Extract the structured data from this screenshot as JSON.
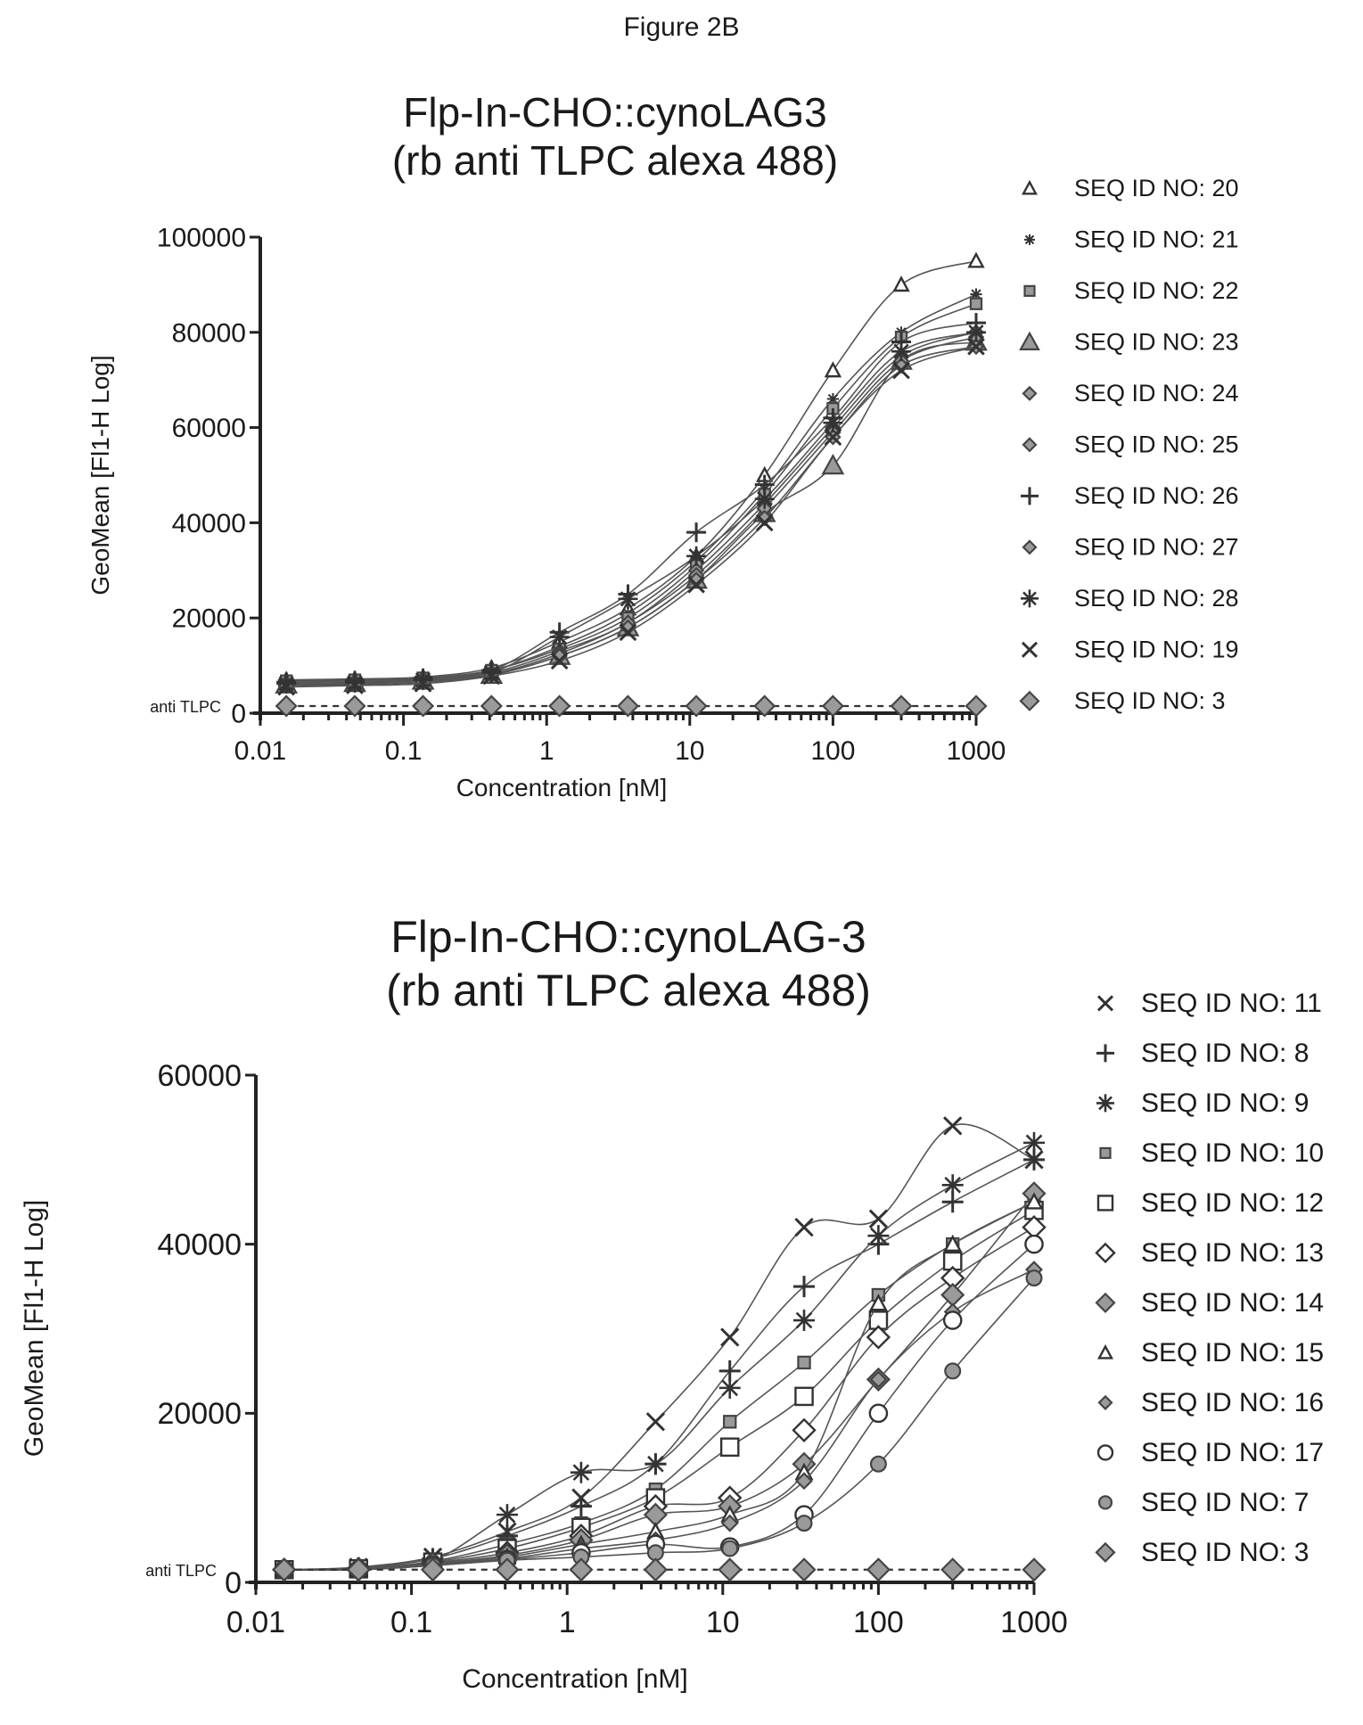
{
  "figure_title": "Figure 2B",
  "chart_data": [
    {
      "type": "scatter",
      "title": "Flp-In-CHO::cynoLAG3",
      "subtitle": "(rb anti TLPC alexa 488)",
      "xlabel": "Concentration [nM]",
      "ylabel": "GeoMean [Fl1-H Log]",
      "xscale": "log",
      "xlim": [
        0.01,
        1000
      ],
      "ylim": [
        0,
        100000
      ],
      "xticks": [
        "0.01",
        "0.1",
        "1",
        "10",
        "100",
        "1000"
      ],
      "yticks": [
        "0",
        "20000",
        "40000",
        "60000",
        "80000",
        "100000"
      ],
      "ref_label": "anti TLPC",
      "legend_position": "right",
      "x": [
        0.0152,
        0.0457,
        0.137,
        0.412,
        1.23,
        3.7,
        11.1,
        33.3,
        100,
        300,
        1000
      ],
      "series": [
        {
          "name": "SEQ ID NO: 20",
          "marker": "triangle-small",
          "values": [
            7000,
            7200,
            7600,
            9500,
            15000,
            22000,
            33000,
            50000,
            72000,
            90000,
            95000
          ]
        },
        {
          "name": "SEQ ID NO: 21",
          "marker": "star-small",
          "values": [
            6500,
            6800,
            7200,
            9000,
            14000,
            21000,
            32000,
            47000,
            66000,
            80000,
            88000
          ]
        },
        {
          "name": "SEQ ID NO: 22",
          "marker": "square-small",
          "values": [
            6800,
            7000,
            7400,
            9000,
            13500,
            20000,
            31000,
            46000,
            64000,
            79000,
            86000
          ]
        },
        {
          "name": "SEQ ID NO: 23",
          "marker": "triangle",
          "values": [
            6000,
            6300,
            6800,
            8000,
            12000,
            18000,
            28000,
            42000,
            52000,
            74000,
            78000
          ]
        },
        {
          "name": "SEQ ID NO: 24",
          "marker": "diamond-small",
          "values": [
            6200,
            6500,
            7000,
            8500,
            13000,
            19000,
            30000,
            44000,
            60000,
            75000,
            80000
          ]
        },
        {
          "name": "SEQ ID NO: 25",
          "marker": "diamond-small",
          "values": [
            6000,
            6200,
            6800,
            8200,
            12500,
            19000,
            29000,
            43000,
            59000,
            74000,
            79000
          ]
        },
        {
          "name": "SEQ ID NO: 26",
          "marker": "plus",
          "values": [
            6500,
            6800,
            7300,
            9000,
            17000,
            25000,
            38000,
            48000,
            62000,
            78000,
            82000
          ]
        },
        {
          "name": "SEQ ID NO: 27",
          "marker": "diamond-small",
          "values": [
            5800,
            6000,
            6500,
            8000,
            12000,
            18000,
            28000,
            41000,
            58000,
            73000,
            77000
          ]
        },
        {
          "name": "SEQ ID NO: 28",
          "marker": "asterisk",
          "values": [
            6200,
            6400,
            7000,
            8500,
            16000,
            24000,
            33000,
            45000,
            61000,
            76000,
            80000
          ]
        },
        {
          "name": "SEQ ID NO: 19",
          "marker": "cross",
          "values": [
            5500,
            5800,
            6200,
            7800,
            11000,
            17000,
            27000,
            40000,
            58000,
            72000,
            77000
          ]
        },
        {
          "name": "SEQ ID NO: 3",
          "marker": "diamond",
          "dashed": true,
          "values": [
            1500,
            1500,
            1500,
            1500,
            1500,
            1500,
            1500,
            1500,
            1500,
            1500,
            1500
          ]
        }
      ]
    },
    {
      "type": "scatter",
      "title": "Flp-In-CHO::cynoLAG-3",
      "subtitle": "(rb anti TLPC alexa 488)",
      "xlabel": "Concentration [nM]",
      "ylabel": "GeoMean [Fl1-H Log]",
      "xscale": "log",
      "xlim": [
        0.01,
        1000
      ],
      "ylim": [
        0,
        60000
      ],
      "xticks": [
        "0.01",
        "0.1",
        "1",
        "10",
        "100",
        "1000"
      ],
      "yticks": [
        "0",
        "20000",
        "40000",
        "60000"
      ],
      "ref_label": "anti TLPC",
      "legend_position": "right",
      "x": [
        0.0152,
        0.0457,
        0.137,
        0.412,
        1.23,
        3.7,
        11.1,
        33.3,
        100,
        300,
        1000
      ],
      "series": [
        {
          "name": "SEQ ID NO: 11",
          "marker": "cross",
          "values": [
            1500,
            1800,
            3000,
            6000,
            10000,
            19000,
            29000,
            42000,
            43000,
            54000,
            50000
          ]
        },
        {
          "name": "SEQ ID NO: 8",
          "marker": "plus",
          "values": [
            1500,
            1700,
            2800,
            5500,
            9000,
            14000,
            25000,
            35000,
            40000,
            45000,
            50000
          ]
        },
        {
          "name": "SEQ ID NO: 9",
          "marker": "asterisk",
          "values": [
            1500,
            1600,
            2600,
            8000,
            13000,
            14000,
            23000,
            31000,
            41000,
            47000,
            52000
          ]
        },
        {
          "name": "SEQ ID NO: 10",
          "marker": "square-small",
          "values": [
            1500,
            1600,
            2500,
            4500,
            7000,
            11000,
            19000,
            26000,
            34000,
            40000,
            45000
          ]
        },
        {
          "name": "SEQ ID NO: 12",
          "marker": "square",
          "values": [
            1500,
            1600,
            2400,
            4000,
            6500,
            10000,
            16000,
            22000,
            31000,
            38000,
            44000
          ]
        },
        {
          "name": "SEQ ID NO: 13",
          "marker": "diamond-open",
          "values": [
            1500,
            1600,
            2300,
            3500,
            5500,
            9000,
            10000,
            18000,
            29000,
            36000,
            42000
          ]
        },
        {
          "name": "SEQ ID NO: 14",
          "marker": "diamond",
          "values": [
            1500,
            1500,
            2200,
            3200,
            5000,
            8000,
            9000,
            14000,
            24000,
            34000,
            46000
          ]
        },
        {
          "name": "SEQ ID NO: 15",
          "marker": "triangle-small",
          "values": [
            1500,
            1500,
            2100,
            3000,
            4500,
            6000,
            8000,
            13000,
            33000,
            40000,
            45000
          ]
        },
        {
          "name": "SEQ ID NO: 16",
          "marker": "diamond-small",
          "values": [
            1500,
            1500,
            2000,
            2800,
            4000,
            5000,
            7000,
            12000,
            24000,
            32000,
            37000
          ]
        },
        {
          "name": "SEQ ID NO: 17",
          "marker": "circle",
          "values": [
            1500,
            1500,
            2000,
            2700,
            3500,
            4500,
            4200,
            8000,
            20000,
            31000,
            40000
          ]
        },
        {
          "name": "SEQ ID NO: 7",
          "marker": "circle-filled",
          "values": [
            1500,
            1500,
            2000,
            2600,
            3000,
            3500,
            4000,
            7000,
            14000,
            25000,
            36000
          ]
        },
        {
          "name": "SEQ ID NO: 3",
          "marker": "diamond",
          "dashed": true,
          "values": [
            1500,
            1500,
            1500,
            1500,
            1500,
            1500,
            1500,
            1500,
            1500,
            1500,
            1500
          ]
        }
      ]
    }
  ]
}
